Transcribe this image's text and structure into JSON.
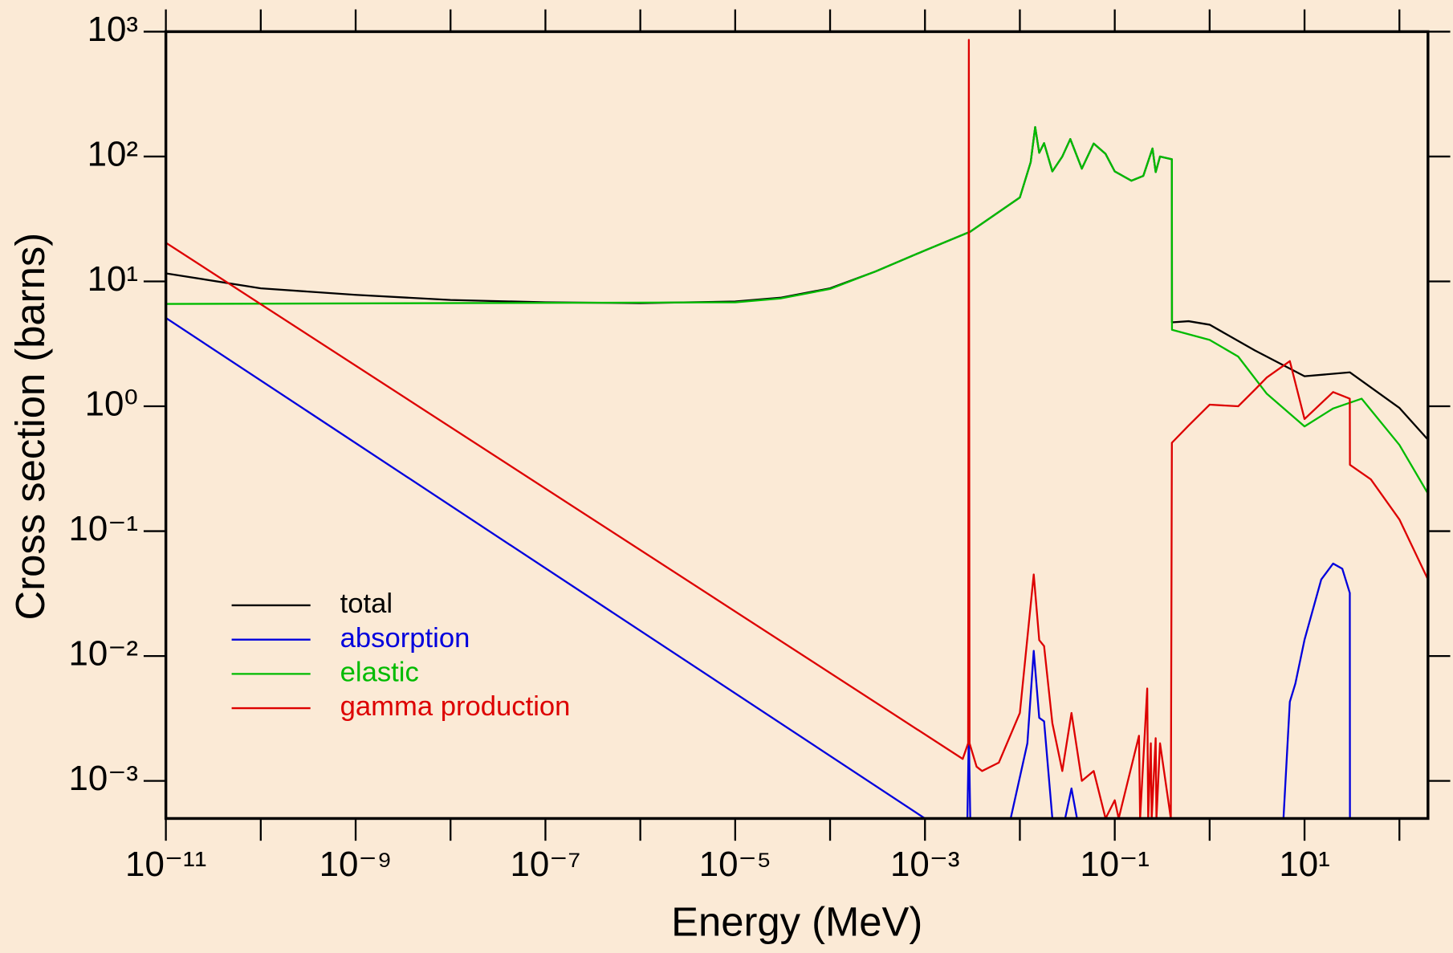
{
  "chart_data": {
    "type": "line",
    "xlabel": "Energy (MeV)",
    "ylabel": "Cross section (barns)",
    "xscale": "log",
    "yscale": "log",
    "xlim": [
      1e-11,
      200
    ],
    "ylim": [
      0.0005,
      1000
    ],
    "xticks": [
      {
        "value": 1e-11,
        "label": "10⁻¹¹"
      },
      {
        "value": 1e-09,
        "label": "10⁻⁹"
      },
      {
        "value": 1e-07,
        "label": "10⁻⁷"
      },
      {
        "value": 1e-05,
        "label": "10⁻⁵"
      },
      {
        "value": 0.001,
        "label": "10⁻³"
      },
      {
        "value": 0.1,
        "label": "10⁻¹"
      },
      {
        "value": 10,
        "label": "10¹"
      }
    ],
    "xminorticks": [
      1e-10,
      1e-08,
      1e-06,
      0.0001,
      0.01,
      1,
      100
    ],
    "yticks": [
      {
        "value": 0.001,
        "label": "10⁻³"
      },
      {
        "value": 0.01,
        "label": "10⁻²"
      },
      {
        "value": 0.1,
        "label": "10⁻¹"
      },
      {
        "value": 1,
        "label": "10⁰"
      },
      {
        "value": 10,
        "label": "10¹"
      },
      {
        "value": 100,
        "label": "10²"
      },
      {
        "value": 1000,
        "label": "10³"
      }
    ],
    "grid": false,
    "legend": "lower left",
    "series": [
      {
        "name": "total",
        "color": "#000000",
        "x": [
          1e-11,
          1e-10,
          1e-09,
          1e-08,
          1e-07,
          1e-06,
          1e-05,
          3e-05,
          0.0001,
          0.0003,
          0.001,
          0.003,
          0.01,
          0.013,
          0.0145,
          0.016,
          0.018,
          0.022,
          0.028,
          0.034,
          0.045,
          0.06,
          0.08,
          0.1,
          0.15,
          0.2,
          0.25,
          0.27,
          0.3,
          0.4,
          0.401,
          0.6,
          1,
          3,
          10,
          30,
          100,
          200
        ],
        "values": [
          11.6,
          8.8,
          7.8,
          7.1,
          6.8,
          6.7,
          6.9,
          7.4,
          8.8,
          12,
          17.7,
          25,
          47,
          90,
          172,
          107,
          128,
          76,
          100,
          138,
          80,
          127,
          105,
          76,
          64,
          70,
          116,
          75,
          100,
          95,
          4.7,
          4.8,
          4.5,
          2.8,
          1.74,
          1.87,
          0.97,
          0.54
        ]
      },
      {
        "name": "absorption",
        "color": "#0000dd",
        "x": [
          1e-11,
          0.001,
          0.0028,
          0.0029,
          0.003,
          0.008,
          0.012,
          0.014,
          0.016,
          0.018,
          0.022,
          0.03,
          0.035,
          0.04,
          6,
          7,
          8,
          10,
          15,
          20,
          25,
          30,
          30.1,
          200
        ],
        "values": [
          5.1,
          0.0005,
          0.0005,
          0.0025,
          0.0005,
          0.0005,
          0.002,
          0.011,
          0.0032,
          0.003,
          0.0005,
          0.0005,
          0.00087,
          0.0005,
          0.0005,
          0.0043,
          0.006,
          0.0135,
          0.041,
          0.055,
          0.05,
          0.032,
          0.0005,
          0.0005
        ]
      },
      {
        "name": "elastic",
        "color": "#00bb00",
        "x": [
          1e-11,
          1e-05,
          3e-05,
          0.0001,
          0.0003,
          0.001,
          0.003,
          0.01,
          0.013,
          0.0145,
          0.016,
          0.018,
          0.022,
          0.028,
          0.034,
          0.045,
          0.06,
          0.08,
          0.1,
          0.15,
          0.2,
          0.25,
          0.27,
          0.3,
          0.4,
          0.401,
          1,
          2,
          4,
          10,
          20,
          40,
          100,
          200
        ],
        "values": [
          6.6,
          6.8,
          7.3,
          8.7,
          12,
          17.7,
          25,
          47,
          90,
          172,
          107,
          128,
          76,
          100,
          138,
          80,
          127,
          105,
          76,
          64,
          70,
          116,
          75,
          100,
          95,
          4.1,
          3.4,
          2.5,
          1.26,
          0.69,
          0.96,
          1.15,
          0.49,
          0.2
        ]
      },
      {
        "name": "gamma production",
        "color": "#dd0000",
        "x": [
          1e-11,
          0.0025,
          0.00285,
          0.0029,
          0.00295,
          0.0035,
          0.004,
          0.006,
          0.01,
          0.014,
          0.016,
          0.018,
          0.022,
          0.028,
          0.035,
          0.045,
          0.06,
          0.08,
          0.1,
          0.11,
          0.18,
          0.185,
          0.22,
          0.225,
          0.24,
          0.245,
          0.27,
          0.275,
          0.3,
          0.39,
          0.4,
          0.6,
          1,
          2,
          3,
          4,
          7,
          10,
          20,
          30,
          30.1,
          50,
          100,
          200
        ],
        "values": [
          20.4,
          0.0015,
          0.002,
          860,
          0.002,
          0.0013,
          0.0012,
          0.0014,
          0.0035,
          0.045,
          0.0134,
          0.012,
          0.0029,
          0.0012,
          0.0035,
          0.001,
          0.0012,
          0.0005,
          0.0007,
          0.0005,
          0.0023,
          0.0005,
          0.0055,
          0.0005,
          0.002,
          0.0005,
          0.0022,
          0.0005,
          0.002,
          0.0005,
          0.51,
          0.7,
          1.03,
          1.0,
          1.36,
          1.7,
          2.3,
          0.79,
          1.3,
          1.15,
          0.34,
          0.26,
          0.124,
          0.041
        ]
      }
    ]
  }
}
